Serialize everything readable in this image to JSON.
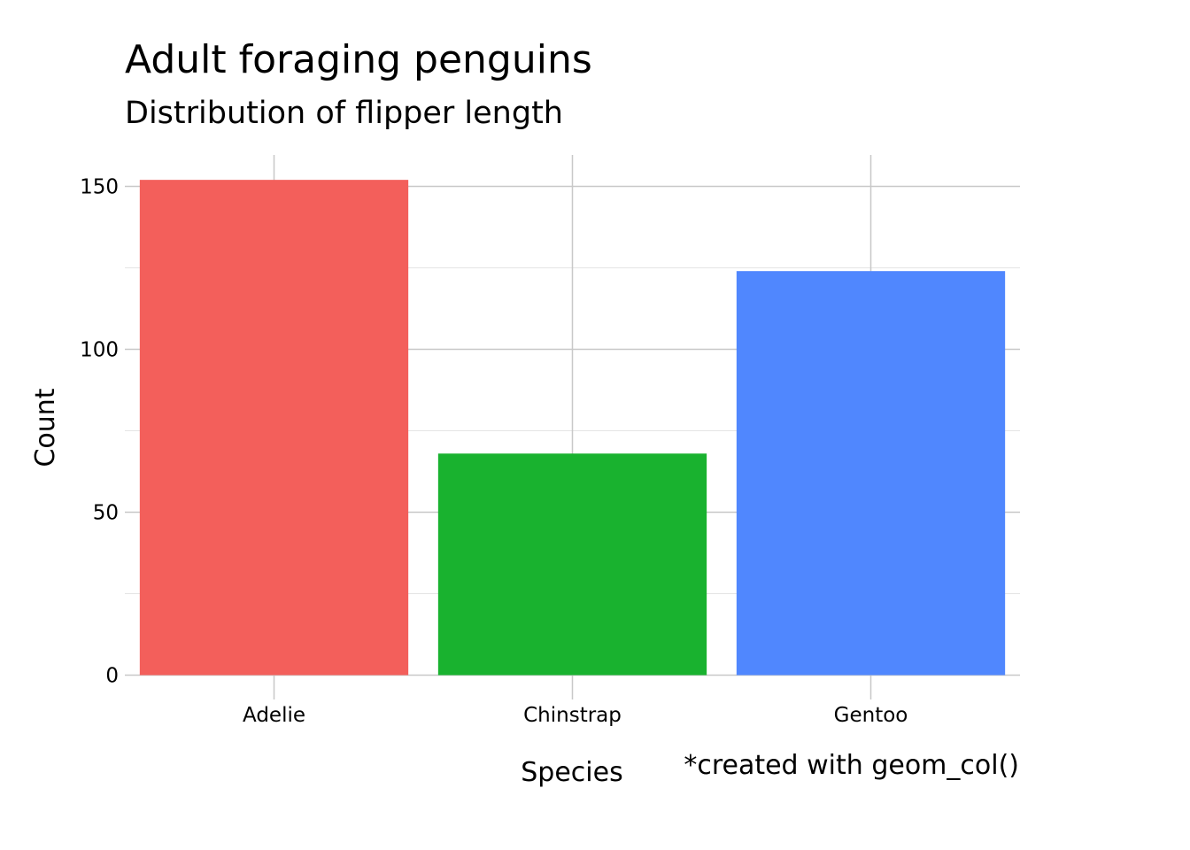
{
  "chart_data": {
    "type": "bar",
    "title": "Adult foraging penguins",
    "subtitle": "Distribution of flipper length",
    "xlabel": "Species",
    "ylabel": "Count",
    "caption": "*created with geom_col()",
    "categories": [
      "Adelie",
      "Chinstrap",
      "Gentoo"
    ],
    "values": [
      152,
      68,
      124
    ],
    "colors": [
      "#F35F5B",
      "#19B22F",
      "#5087FE"
    ],
    "ylim": [
      0,
      160
    ],
    "yticks": [
      0,
      50,
      100,
      150
    ],
    "yticks_minor": [
      25,
      75,
      125
    ],
    "grid": true,
    "legend": "none"
  }
}
